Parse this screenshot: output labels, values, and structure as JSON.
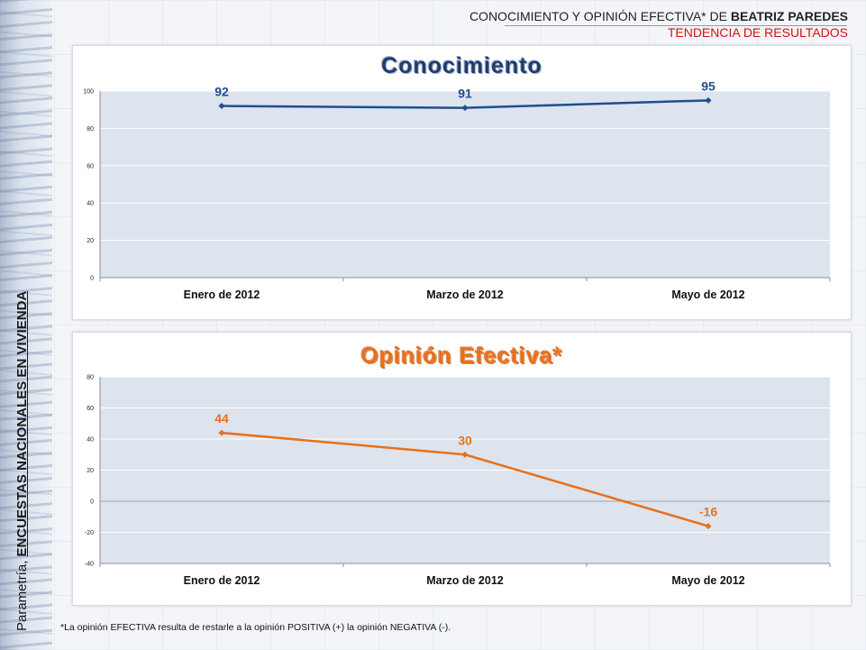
{
  "header": {
    "line1_prefix": "CONOCIMIENTO Y OPINIÓN EFECTIVA* DE ",
    "line1_name": "BEATRIZ PAREDES",
    "line2": "TENDENCIA DE RESULTADOS"
  },
  "side": {
    "prefix": "Parametría, ",
    "bold": "ENCUESTAS NACIONALES EN VIVIENDA"
  },
  "footnote": "*La opinión EFECTIVA resulta de restarle a la opinión POSITIVA (+) la opinión NEGATIVA (-).",
  "colors": {
    "conocimiento": "#1f4e8c",
    "opinion": "#e8701a",
    "plot_bg": "#dde4ee",
    "grid": "#ffffff"
  },
  "chart_data": [
    {
      "type": "line",
      "title": "Conocimiento",
      "categories": [
        "Enero de 2012",
        "Marzo de 2012",
        "Mayo de 2012"
      ],
      "values": [
        92,
        91,
        95
      ],
      "data_labels": [
        "92",
        "91",
        "95"
      ],
      "ylim": [
        0,
        100
      ],
      "yticks": [
        "0",
        "20",
        "40",
        "60",
        "80",
        "100"
      ],
      "grid": true
    },
    {
      "type": "line",
      "title": "Opinión Efectiva*",
      "categories": [
        "Enero de 2012",
        "Marzo de 2012",
        "Mayo de 2012"
      ],
      "values": [
        44,
        30,
        -16
      ],
      "data_labels": [
        "44",
        "30",
        "-16"
      ],
      "ylim": [
        -40,
        80
      ],
      "yticks": [
        "-40",
        "-20",
        "0",
        "20",
        "40",
        "60",
        "80"
      ],
      "grid": true
    }
  ]
}
